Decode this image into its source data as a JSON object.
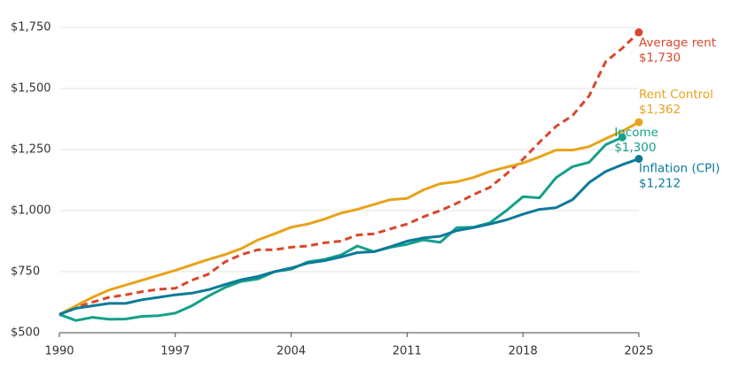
{
  "chart_data": {
    "type": "line",
    "x": [
      1990,
      1991,
      1992,
      1993,
      1994,
      1995,
      1996,
      1997,
      1998,
      1999,
      2000,
      2001,
      2002,
      2003,
      2004,
      2005,
      2006,
      2007,
      2008,
      2009,
      2010,
      2011,
      2012,
      2013,
      2014,
      2015,
      2016,
      2017,
      2018,
      2019,
      2020,
      2021,
      2022,
      2023,
      2024,
      2025
    ],
    "xlim": [
      1990,
      2025
    ],
    "xticks": [
      1990,
      1997,
      2004,
      2011,
      2018,
      2025
    ],
    "ylim": [
      500,
      1750
    ],
    "yticks": [
      {
        "value": 500,
        "label": "$500"
      },
      {
        "value": 750,
        "label": "$750"
      },
      {
        "value": 1000,
        "label": "$1,000"
      },
      {
        "value": 1250,
        "label": "$1,250"
      },
      {
        "value": 1500,
        "label": "$1,500"
      },
      {
        "value": 1750,
        "label": "$1,750"
      }
    ],
    "grid": true,
    "series": [
      {
        "name": "Average rent",
        "color": "#d9472b",
        "dashed": true,
        "values": [
          575,
          605,
          625,
          645,
          655,
          668,
          678,
          682,
          715,
          740,
          790,
          820,
          840,
          840,
          850,
          855,
          868,
          875,
          900,
          905,
          925,
          945,
          975,
          1000,
          1030,
          1065,
          1095,
          1150,
          1210,
          1280,
          1345,
          1390,
          1470,
          1610,
          1665,
          1730
        ],
        "value_labels": [
          null,
          null,
          null,
          null,
          null,
          null,
          null,
          null,
          null,
          null,
          null,
          null,
          null,
          null,
          null,
          null,
          null,
          null,
          null,
          null,
          null,
          null,
          null,
          null,
          null,
          null,
          null,
          null,
          null,
          null,
          null,
          null,
          null,
          null,
          null,
          "$1,730"
        ]
      },
      {
        "name": "Rent Control",
        "color": "#e8a31a",
        "values": [
          575,
          610,
          645,
          675,
          695,
          715,
          735,
          755,
          778,
          800,
          820,
          845,
          880,
          905,
          932,
          945,
          965,
          990,
          1005,
          1025,
          1045,
          1050,
          1085,
          1110,
          1118,
          1135,
          1160,
          1178,
          1195,
          1220,
          1248,
          1248,
          1262,
          1295,
          1325,
          1362
        ],
        "value_labels": [
          null,
          null,
          null,
          null,
          null,
          null,
          null,
          null,
          null,
          null,
          null,
          null,
          null,
          null,
          null,
          null,
          null,
          null,
          null,
          null,
          null,
          null,
          null,
          null,
          null,
          null,
          null,
          null,
          null,
          null,
          null,
          null,
          null,
          null,
          null,
          "$1,362"
        ]
      },
      {
        "name": "Income",
        "color": "#14a08a",
        "values": [
          575,
          550,
          563,
          555,
          556,
          567,
          570,
          580,
          610,
          650,
          685,
          710,
          720,
          750,
          760,
          790,
          800,
          818,
          855,
          832,
          850,
          862,
          880,
          870,
          930,
          932,
          950,
          1000,
          1057,
          1052,
          1135,
          1180,
          1198,
          1270,
          1300,
          null
        ],
        "value_labels": [
          null,
          null,
          null,
          null,
          null,
          null,
          null,
          null,
          null,
          null,
          null,
          null,
          null,
          null,
          null,
          null,
          null,
          null,
          null,
          null,
          null,
          null,
          null,
          null,
          null,
          null,
          null,
          null,
          null,
          null,
          null,
          null,
          null,
          null,
          "$1,300",
          null
        ]
      },
      {
        "name": "Inflation (CPI)",
        "color": "#0b7a99",
        "values": [
          575,
          600,
          610,
          620,
          620,
          635,
          645,
          655,
          662,
          676,
          697,
          717,
          730,
          750,
          765,
          785,
          795,
          810,
          828,
          832,
          852,
          875,
          888,
          895,
          918,
          930,
          945,
          962,
          985,
          1005,
          1012,
          1045,
          1115,
          1160,
          1188,
          1212
        ],
        "value_labels": [
          null,
          null,
          null,
          null,
          null,
          null,
          null,
          null,
          null,
          null,
          null,
          null,
          null,
          null,
          null,
          null,
          null,
          null,
          null,
          null,
          null,
          null,
          null,
          null,
          null,
          null,
          null,
          null,
          null,
          null,
          null,
          null,
          null,
          null,
          null,
          "$1,212"
        ]
      }
    ]
  }
}
